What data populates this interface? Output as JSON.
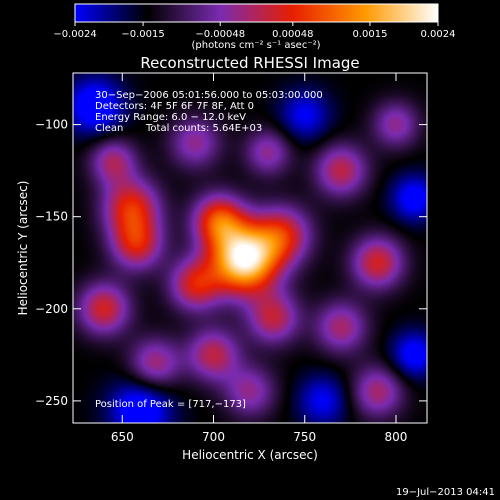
{
  "chart_data": {
    "type": "heatmap",
    "title": "Reconstructed RHESSI Image",
    "xlabel": "Heliocentric X (arcsec)",
    "ylabel": "Heliocentric Y (arcsec)",
    "xlim": [
      623,
      817
    ],
    "ylim": [
      -262,
      -72
    ],
    "x_ticks": [
      650,
      700,
      750,
      800
    ],
    "x_tick_labels": [
      "650",
      "700",
      "750",
      "800"
    ],
    "y_ticks": [
      -100,
      -150,
      -200,
      -250
    ],
    "y_tick_labels": [
      "−100",
      "−150",
      "−200",
      "−250"
    ],
    "colorbar": {
      "range": [
        -0.0024,
        0.0024
      ],
      "ticks": [
        -0.0024,
        -0.0015,
        -0.00048,
        0.00048,
        0.0015,
        0.0024
      ],
      "tick_labels": [
        "−0.0024",
        "−0.0015",
        "−0.00048",
        "0.00048",
        "0.0015",
        "0.0024"
      ],
      "unit_label": "(photons cm⁻² s⁻¹ asec⁻²)",
      "colormap": [
        "#0000ff",
        "#000000",
        "#7a2bb0",
        "#e81e00",
        "#ff9a00",
        "#ffffff"
      ]
    },
    "annotations": {
      "time_range": "30−Sep−2006 05:01:56.000 to 05:03:00.000",
      "detectors": "Detectors: 4F 5F 6F 7F 8F, Att 0",
      "energy": "Energy Range: 6.0 − 12.0 keV",
      "method": "Clean",
      "total_counts": "Total counts: 5.64E+03",
      "peak_position": "Position of Peak = [717,−173]"
    },
    "peak": {
      "x": 717,
      "y": -173
    },
    "sources": [
      {
        "x": 717,
        "y": -173,
        "sigma": 13,
        "amp": 1.0
      },
      {
        "x": 703,
        "y": -152,
        "sigma": 10,
        "amp": 0.55
      },
      {
        "x": 738,
        "y": -160,
        "sigma": 11,
        "amp": 0.45
      },
      {
        "x": 690,
        "y": -187,
        "sigma": 10,
        "amp": 0.45
      },
      {
        "x": 733,
        "y": -205,
        "sigma": 10,
        "amp": 0.4
      },
      {
        "x": 655,
        "y": -145,
        "sigma": 11,
        "amp": 0.5
      },
      {
        "x": 658,
        "y": -165,
        "sigma": 10,
        "amp": 0.45
      },
      {
        "x": 640,
        "y": -200,
        "sigma": 10,
        "amp": 0.45
      },
      {
        "x": 668,
        "y": -230,
        "sigma": 10,
        "amp": 0.35
      },
      {
        "x": 700,
        "y": -225,
        "sigma": 10,
        "amp": 0.4
      },
      {
        "x": 770,
        "y": -125,
        "sigma": 10,
        "amp": 0.4
      },
      {
        "x": 790,
        "y": -175,
        "sigma": 10,
        "amp": 0.45
      },
      {
        "x": 770,
        "y": -210,
        "sigma": 10,
        "amp": 0.35
      },
      {
        "x": 690,
        "y": -110,
        "sigma": 10,
        "amp": 0.3
      },
      {
        "x": 730,
        "y": -115,
        "sigma": 9,
        "amp": 0.3
      },
      {
        "x": 790,
        "y": -245,
        "sigma": 10,
        "amp": 0.35
      },
      {
        "x": 645,
        "y": -120,
        "sigma": 9,
        "amp": 0.35
      },
      {
        "x": 720,
        "y": -245,
        "sigma": 10,
        "amp": 0.3
      },
      {
        "x": 800,
        "y": -100,
        "sigma": 9,
        "amp": 0.3
      },
      {
        "x": 635,
        "y": -90,
        "sigma": 11,
        "amp": -0.35
      },
      {
        "x": 660,
        "y": -255,
        "sigma": 12,
        "amp": -0.35
      },
      {
        "x": 810,
        "y": -140,
        "sigma": 9,
        "amp": -0.3
      },
      {
        "x": 750,
        "y": -95,
        "sigma": 10,
        "amp": -0.25
      },
      {
        "x": 760,
        "y": -250,
        "sigma": 10,
        "amp": -0.25
      },
      {
        "x": 810,
        "y": -225,
        "sigma": 9,
        "amp": -0.3
      }
    ]
  },
  "footer": {
    "timestamp": "19−Jul−2013 04:41"
  }
}
